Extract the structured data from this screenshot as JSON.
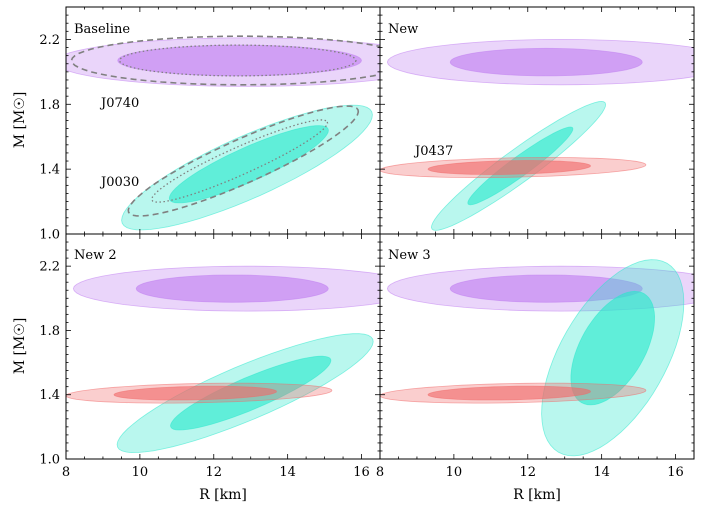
{
  "chart_data": {
    "type": "contour",
    "xlabel": "R [km]",
    "ylabel": "M [M☉]",
    "panels": [
      {
        "title": "Baseline",
        "xlim": [
          8,
          16.5
        ],
        "ylim": [
          1.0,
          2.4
        ],
        "xticks": [
          8,
          10,
          12,
          14,
          16
        ],
        "yticks": [
          1.0,
          1.4,
          1.8,
          2.2
        ],
        "series": [
          {
            "name": "J0740",
            "color": "#c07ef0",
            "level": "outer",
            "center": [
              12.9,
              2.06
            ],
            "radii": [
              5.2,
              0.15
            ],
            "angle": 0
          },
          {
            "name": "J0740",
            "color": "#c07ef0",
            "level": "inner",
            "center": [
              12.7,
              2.07
            ],
            "radii": [
              3.3,
              0.095
            ],
            "angle": 0
          },
          {
            "name": "J0030",
            "color": "#2ae8cc",
            "level": "outer",
            "center": [
              12.9,
              1.41
            ],
            "radii": [
              3.7,
              0.19
            ],
            "angle": 0.42
          },
          {
            "name": "J0030",
            "color": "#2ae8cc",
            "level": "inner",
            "center": [
              12.95,
              1.43
            ],
            "radii": [
              2.35,
              0.105
            ],
            "angle": 0.42
          }
        ],
        "overlays": [
          {
            "name": "J0740 dashed",
            "style": "dashed",
            "center": [
              12.75,
              2.07
            ],
            "radii": [
              4.6,
              0.15
            ],
            "angle": 0
          },
          {
            "name": "J0740 dotted",
            "style": "dotted",
            "center": [
              12.65,
              2.07
            ],
            "radii": [
              3.2,
              0.095
            ],
            "angle": 0
          },
          {
            "name": "J0030 dashed",
            "style": "dashed",
            "center": [
              12.8,
              1.45
            ],
            "radii": [
              3.4,
              0.135
            ],
            "angle": 0.42
          },
          {
            "name": "J0030 dotted",
            "style": "dotted",
            "center": [
              12.7,
              1.45
            ],
            "radii": [
              2.6,
              0.085
            ],
            "angle": 0.42
          }
        ],
        "labels": [
          {
            "text": "J0740",
            "x": 9.0,
            "y": 1.82,
            "color": "#c07ef0"
          },
          {
            "text": "J0030",
            "x": 9.0,
            "y": 1.33,
            "color": "#2ae8cc"
          }
        ]
      },
      {
        "title": "New",
        "xlim": [
          8,
          16.5
        ],
        "ylim": [
          1.0,
          2.4
        ],
        "xticks": [
          8,
          10,
          12,
          14,
          16
        ],
        "yticks": [
          1.0,
          1.4,
          1.8,
          2.2
        ],
        "series": [
          {
            "name": "J0740",
            "color": "#c07ef0",
            "level": "outer",
            "center": [
              12.9,
              2.06
            ],
            "radii": [
              4.7,
              0.14
            ],
            "angle": 0
          },
          {
            "name": "J0740",
            "color": "#c07ef0",
            "level": "inner",
            "center": [
              12.5,
              2.06
            ],
            "radii": [
              2.6,
              0.085
            ],
            "angle": 0
          },
          {
            "name": "J0030",
            "color": "#2ae8cc",
            "level": "outer",
            "center": [
              11.75,
              1.42
            ],
            "radii": [
              2.9,
              0.1
            ],
            "angle": 0.63
          },
          {
            "name": "J0030",
            "color": "#2ae8cc",
            "level": "inner",
            "center": [
              11.8,
              1.42
            ],
            "radii": [
              1.75,
              0.06
            ],
            "angle": 0.63
          },
          {
            "name": "J0437",
            "color": "#f06a6a",
            "level": "outer",
            "center": [
              11.6,
              1.41
            ],
            "radii": [
              3.6,
              0.06
            ],
            "angle": 0.02
          },
          {
            "name": "J0437",
            "color": "#f06a6a",
            "level": "inner",
            "center": [
              11.5,
              1.41
            ],
            "radii": [
              2.2,
              0.042
            ],
            "angle": 0.02
          }
        ],
        "overlays": [],
        "labels": [
          {
            "text": "J0437",
            "x": 9.0,
            "y": 1.52,
            "color": "#f06a6a"
          }
        ]
      },
      {
        "title": "New 2",
        "xlim": [
          8,
          16.5
        ],
        "ylim": [
          1.0,
          2.4
        ],
        "xticks": [
          8,
          10,
          12,
          14,
          16
        ],
        "yticks": [
          1.0,
          1.4,
          1.8,
          2.2
        ],
        "series": [
          {
            "name": "J0740",
            "color": "#c07ef0",
            "level": "outer",
            "center": [
              12.9,
              2.06
            ],
            "radii": [
              4.7,
              0.14
            ],
            "angle": 0
          },
          {
            "name": "J0740",
            "color": "#c07ef0",
            "level": "inner",
            "center": [
              12.5,
              2.06
            ],
            "radii": [
              2.6,
              0.085
            ],
            "angle": 0
          },
          {
            "name": "J0030",
            "color": "#2ae8cc",
            "level": "outer",
            "center": [
              12.85,
              1.41
            ],
            "radii": [
              3.75,
              0.17
            ],
            "angle": 0.4
          },
          {
            "name": "J0030",
            "color": "#2ae8cc",
            "level": "inner",
            "center": [
              13.0,
              1.41
            ],
            "radii": [
              2.35,
              0.1
            ],
            "angle": 0.4
          },
          {
            "name": "J0437",
            "color": "#f06a6a",
            "level": "outer",
            "center": [
              11.6,
              1.41
            ],
            "radii": [
              3.6,
              0.06
            ],
            "angle": 0.02
          },
          {
            "name": "J0437",
            "color": "#f06a6a",
            "level": "inner",
            "center": [
              11.5,
              1.41
            ],
            "radii": [
              2.2,
              0.042
            ],
            "angle": 0.02
          }
        ],
        "overlays": [],
        "labels": []
      },
      {
        "title": "New 3",
        "xlim": [
          8,
          16.5
        ],
        "ylim": [
          1.0,
          2.4
        ],
        "xticks": [
          8,
          10,
          12,
          14,
          16
        ],
        "yticks": [
          1.0,
          1.4,
          1.8,
          2.2
        ],
        "series": [
          {
            "name": "J0740",
            "color": "#c07ef0",
            "level": "outer",
            "center": [
              12.9,
              2.06
            ],
            "radii": [
              4.7,
              0.14
            ],
            "angle": 0
          },
          {
            "name": "J0740",
            "color": "#c07ef0",
            "level": "inner",
            "center": [
              12.5,
              2.06
            ],
            "radii": [
              2.6,
              0.085
            ],
            "angle": 0
          },
          {
            "name": "J0030",
            "color": "#2ae8cc",
            "level": "outer",
            "center": [
              14.3,
              1.63
            ],
            "radii": [
              2.95,
              0.33
            ],
            "angle": 1.05
          },
          {
            "name": "J0030",
            "color": "#2ae8cc",
            "level": "inner",
            "center": [
              14.3,
              1.69
            ],
            "radii": [
              1.7,
              0.2
            ],
            "angle": 1.05
          },
          {
            "name": "J0437",
            "color": "#f06a6a",
            "level": "outer",
            "center": [
              11.6,
              1.41
            ],
            "radii": [
              3.6,
              0.06
            ],
            "angle": 0.02
          },
          {
            "name": "J0437",
            "color": "#f06a6a",
            "level": "inner",
            "center": [
              11.5,
              1.41
            ],
            "radii": [
              2.2,
              0.042
            ],
            "angle": 0.02
          }
        ],
        "overlays": [],
        "labels": []
      }
    ]
  }
}
